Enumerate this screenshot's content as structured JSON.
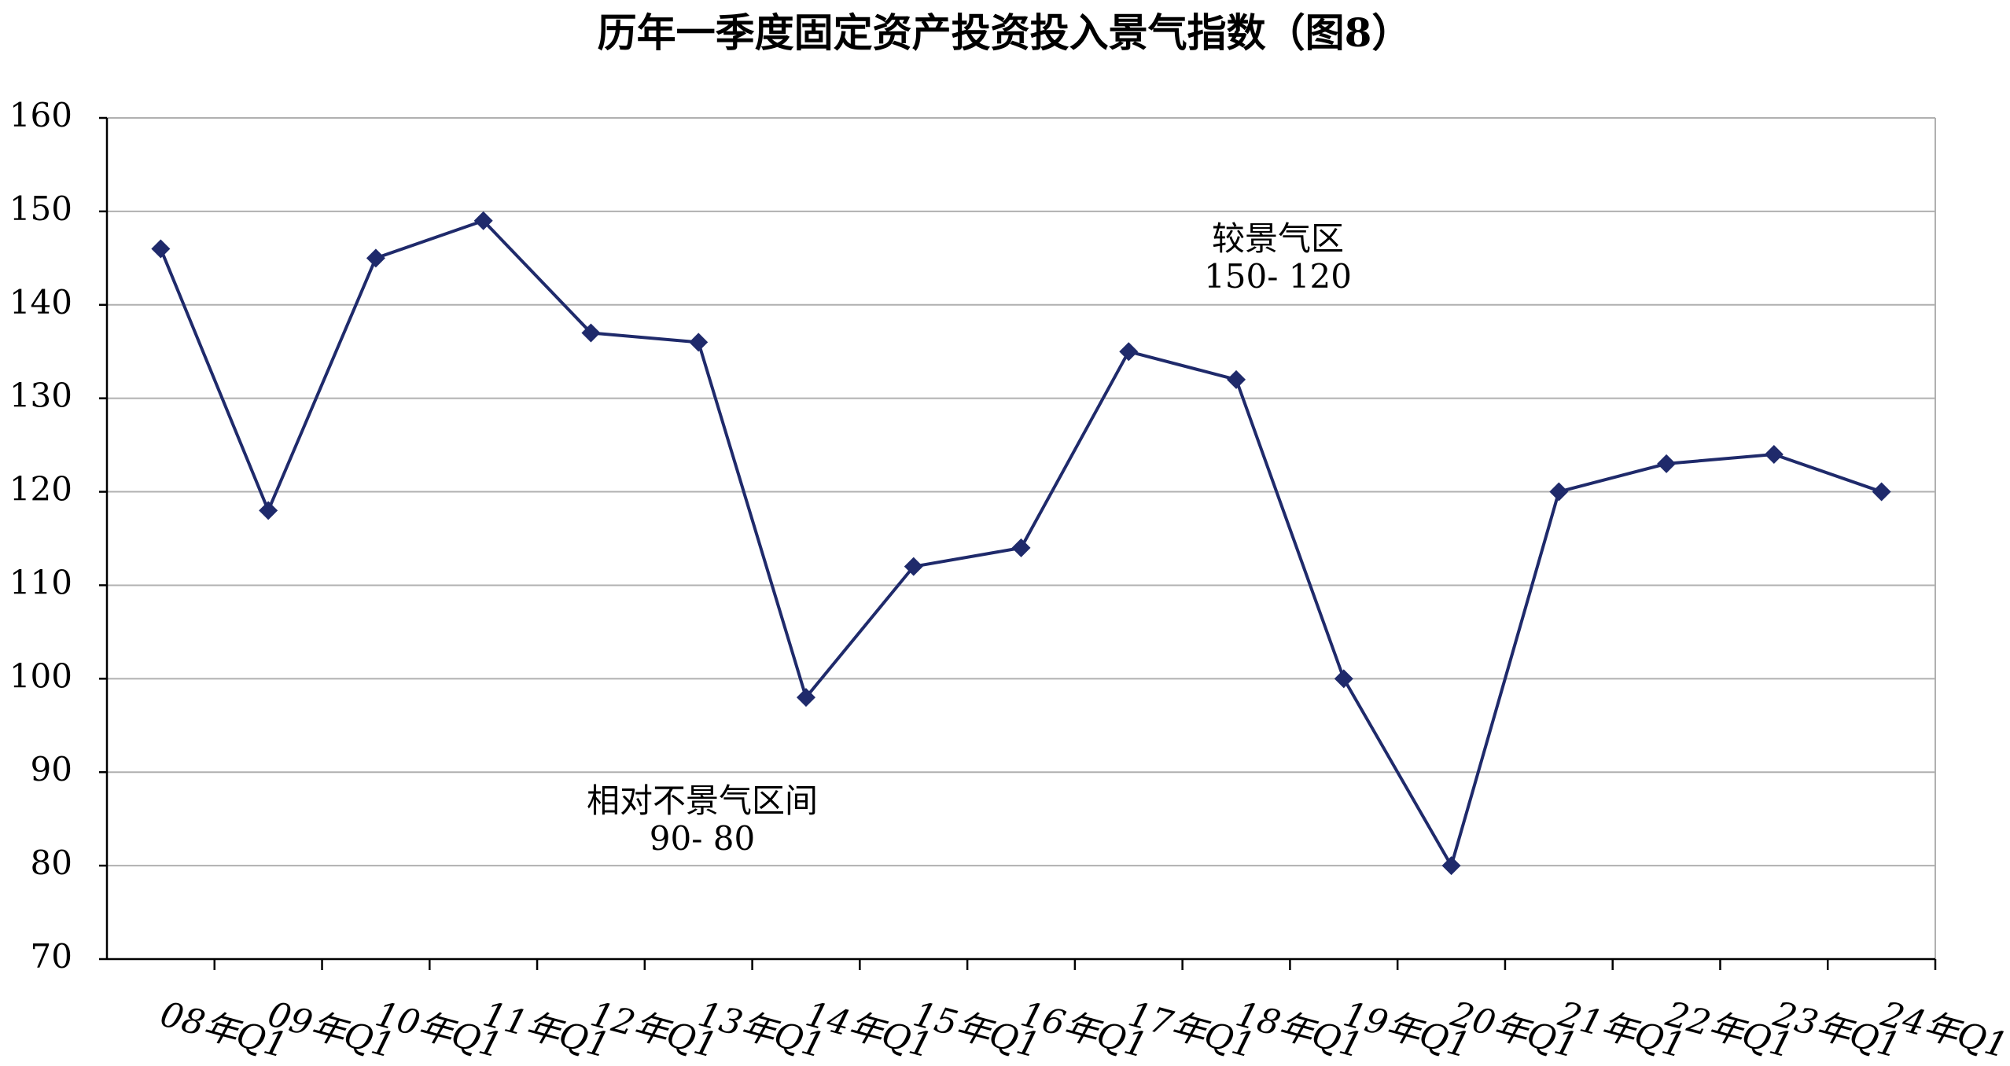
{
  "chart_data": {
    "type": "line",
    "title": "历年一季度固定资产投资投入景气指数（图8）",
    "categories": [
      "08年Q1",
      "09年Q1",
      "10年Q1",
      "11年Q1",
      "12年Q1",
      "13年Q1",
      "14年Q1",
      "15年Q1",
      "16年Q1",
      "17年Q1",
      "18年Q1",
      "19年Q1",
      "20年Q1",
      "21年Q1",
      "22年Q1",
      "23年Q1",
      "24年Q1"
    ],
    "values": [
      146,
      118,
      145,
      149,
      137,
      136,
      98,
      112,
      114,
      135,
      132,
      100,
      80,
      120,
      123,
      124,
      120
    ],
    "color": "#1f2a6b",
    "ylim": [
      70,
      160
    ],
    "yticks": [
      70,
      80,
      90,
      100,
      110,
      120,
      130,
      140,
      150,
      160
    ],
    "grid": true,
    "annotations": [
      {
        "lines": [
          "较景气区",
          "150- 120"
        ]
      },
      {
        "lines": [
          "相对不景气区间",
          "90- 80"
        ]
      }
    ]
  }
}
